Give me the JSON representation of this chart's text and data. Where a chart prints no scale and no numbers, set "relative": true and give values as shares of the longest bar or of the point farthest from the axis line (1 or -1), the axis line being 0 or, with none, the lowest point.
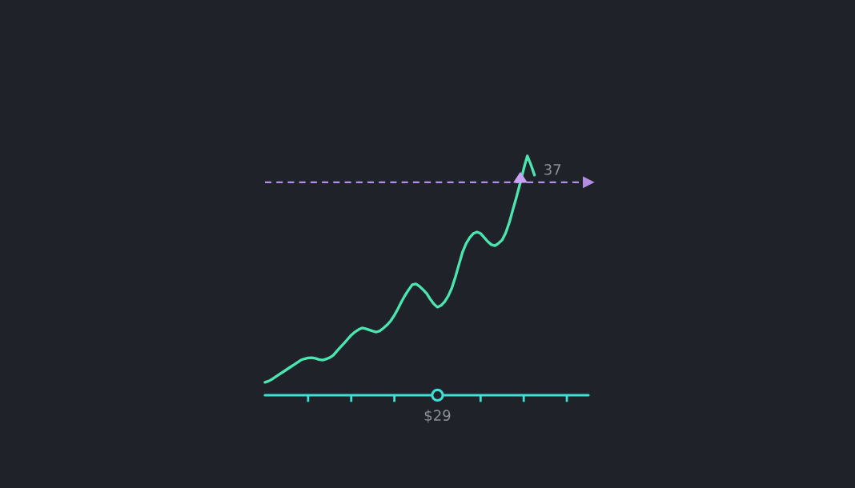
{
  "chart_data": {
    "type": "line",
    "relative": true,
    "categories": [
      null,
      null,
      null,
      null,
      null,
      null,
      null,
      null,
      null,
      null,
      null,
      null,
      null,
      null,
      null,
      null,
      null,
      null,
      null,
      null,
      null,
      null,
      null,
      null,
      null,
      null,
      null,
      null,
      null,
      null,
      null,
      null,
      null,
      null,
      null,
      null,
      null,
      null,
      null,
      null,
      null,
      null,
      null,
      null,
      null,
      null,
      null,
      null,
      null,
      null,
      null,
      null,
      null,
      null,
      null,
      null,
      null,
      null,
      null,
      null,
      null,
      null,
      null,
      null,
      null,
      null,
      null,
      null,
      null,
      null,
      null,
      null,
      null,
      null,
      null,
      null,
      null,
      null,
      null,
      null,
      null,
      null,
      null,
      null,
      null,
      null,
      null,
      null,
      null,
      null,
      null
    ],
    "series": [
      {
        "color": "#4be6b0",
        "values": [
          0.054,
          0.059,
          0.067,
          0.077,
          0.087,
          0.097,
          0.107,
          0.117,
          0.127,
          0.137,
          0.147,
          0.152,
          0.156,
          0.157,
          0.154,
          0.149,
          0.147,
          0.151,
          0.157,
          0.167,
          0.184,
          0.201,
          0.217,
          0.234,
          0.251,
          0.264,
          0.274,
          0.281,
          0.278,
          0.273,
          0.268,
          0.264,
          0.269,
          0.281,
          0.294,
          0.311,
          0.334,
          0.361,
          0.391,
          0.418,
          0.441,
          0.462,
          0.465,
          0.455,
          0.441,
          0.425,
          0.401,
          0.381,
          0.368,
          0.375,
          0.391,
          0.415,
          0.448,
          0.495,
          0.548,
          0.599,
          0.635,
          0.659,
          0.676,
          0.682,
          0.676,
          0.659,
          0.642,
          0.629,
          0.625,
          0.635,
          0.649,
          0.679,
          0.722,
          0.776,
          0.829,
          0.886,
          0.946,
          1,
          0.963,
          0.92,
          null,
          null,
          null,
          null,
          null,
          null,
          null,
          null,
          null,
          null,
          null,
          null,
          null,
          null,
          null
        ]
      }
    ],
    "ref_lines": [
      {
        "axis": "y",
        "value": 0.89,
        "color": "#b48ee6",
        "line_style": "dashed"
      }
    ],
    "annotations": [
      {
        "text": "37",
        "y": 0.89
      },
      "$29"
    ],
    "line_style": "solid"
  }
}
